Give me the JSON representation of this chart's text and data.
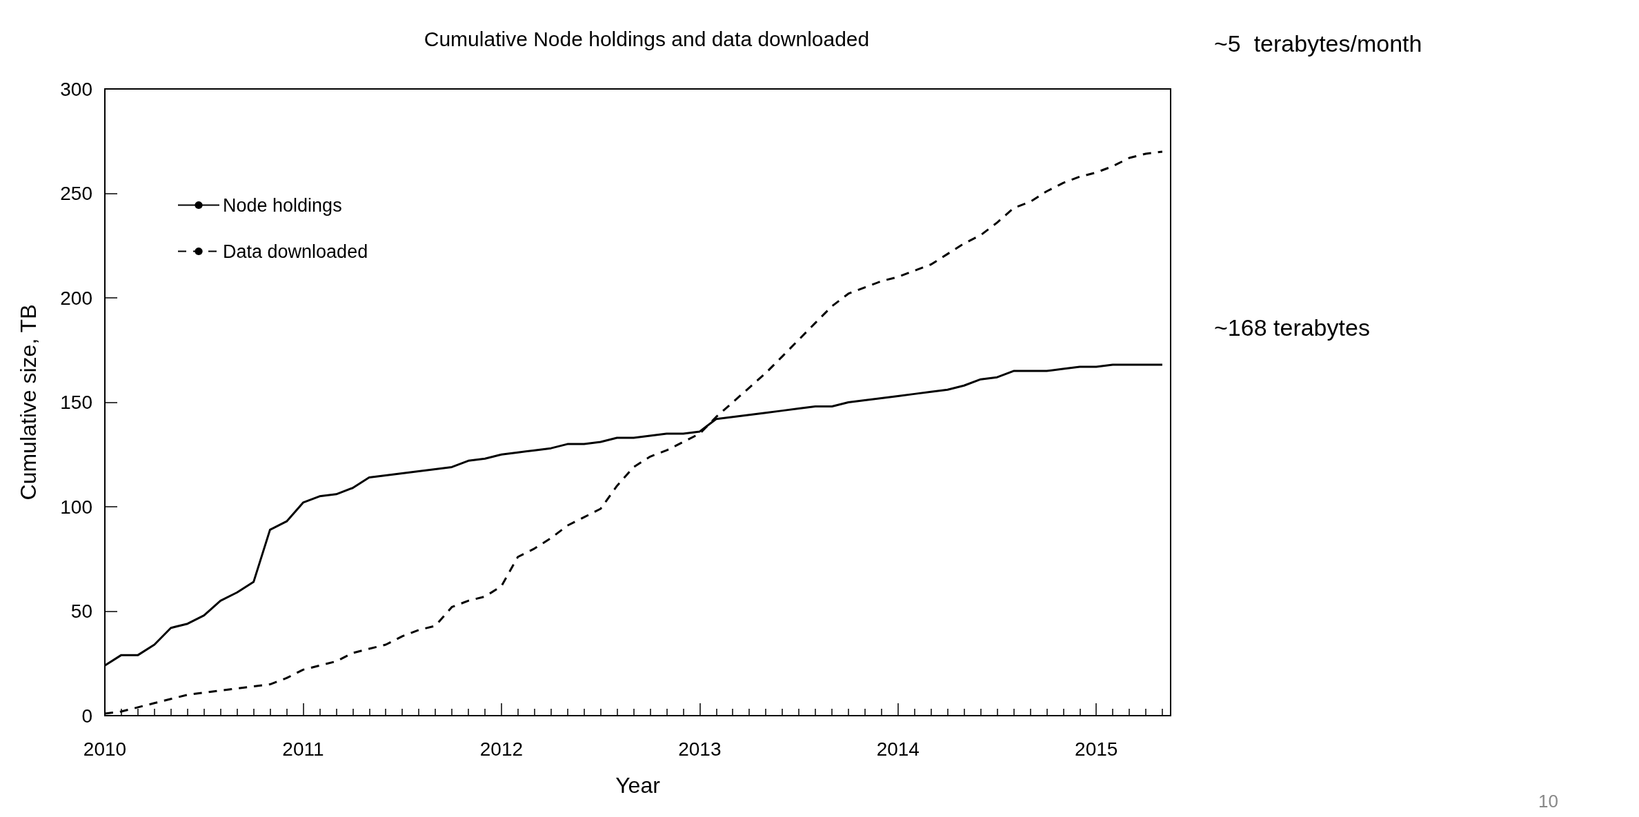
{
  "chart_data": {
    "type": "line",
    "title": "Cumulative Node holdings and data downloaded",
    "xlabel": "Year",
    "ylabel": "Cumulative size, TB",
    "x": [
      2010,
      2010.083,
      2010.167,
      2010.25,
      2010.333,
      2010.417,
      2010.5,
      2010.583,
      2010.667,
      2010.75,
      2010.833,
      2010.917,
      2011,
      2011.083,
      2011.167,
      2011.25,
      2011.333,
      2011.417,
      2011.5,
      2011.583,
      2011.667,
      2011.75,
      2011.833,
      2011.917,
      2012,
      2012.083,
      2012.167,
      2012.25,
      2012.333,
      2012.417,
      2012.5,
      2012.583,
      2012.667,
      2012.75,
      2012.833,
      2012.917,
      2013,
      2013.083,
      2013.167,
      2013.25,
      2013.333,
      2013.417,
      2013.5,
      2013.583,
      2013.667,
      2013.75,
      2013.833,
      2013.917,
      2014,
      2014.083,
      2014.167,
      2014.25,
      2014.333,
      2014.417,
      2014.5,
      2014.583,
      2014.667,
      2014.75,
      2014.833,
      2014.917,
      2015,
      2015.083,
      2015.167,
      2015.25,
      2015.333
    ],
    "series": [
      {
        "name": "Node holdings",
        "color": "#000000",
        "line_style": "solid",
        "values": [
          24,
          29,
          29,
          34,
          42,
          44,
          48,
          55,
          59,
          64,
          89,
          93,
          102,
          105,
          106,
          109,
          114,
          115,
          116,
          117,
          118,
          119,
          122,
          123,
          125,
          126,
          127,
          128,
          130,
          130,
          131,
          133,
          133,
          134,
          135,
          135,
          136,
          142,
          143,
          144,
          145,
          146,
          147,
          148,
          148,
          150,
          151,
          152,
          153,
          154,
          155,
          156,
          158,
          161,
          162,
          165,
          165,
          165,
          166,
          167,
          167,
          168,
          168,
          168,
          168
        ]
      },
      {
        "name": "Data downloaded",
        "color": "#000000",
        "line_style": "dashed",
        "values": [
          1,
          2,
          4,
          6,
          8,
          10,
          11,
          12,
          13,
          14,
          15,
          18,
          22,
          24,
          26,
          30,
          32,
          34,
          38,
          41,
          43,
          52,
          55,
          57,
          62,
          76,
          80,
          85,
          91,
          95,
          99,
          110,
          119,
          124,
          127,
          131,
          135,
          143,
          150,
          157,
          164,
          172,
          180,
          188,
          196,
          202,
          205,
          208,
          210,
          213,
          216,
          221,
          226,
          230,
          236,
          243,
          246,
          251,
          255,
          258,
          260,
          263,
          267,
          269,
          270
        ]
      }
    ],
    "xlim": [
      2010,
      2015.375
    ],
    "xticks": [
      2010,
      2011,
      2012,
      2013,
      2014,
      2015
    ],
    "ylim": [
      0,
      300
    ],
    "yticks": [
      0,
      50,
      100,
      150,
      200,
      250,
      300
    ],
    "legend": "top left",
    "marker": "none",
    "annotations": [
      "~5  terabytes/month",
      "~168 terabytes",
      "10"
    ]
  }
}
